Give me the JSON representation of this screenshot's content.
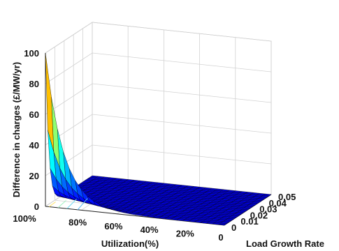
{
  "chart_data": {
    "type": "surface",
    "title": "",
    "xlabel": "Utilization(%)",
    "ylabel": "Load Growth Rate",
    "zlabel": "Difference in charges (£/MW/yr)",
    "x_ticks": [
      "100%",
      "80%",
      "60%",
      "40%",
      "20%",
      "0"
    ],
    "y_ticks": [
      "0",
      "0.01",
      "0.02",
      "0.03",
      "0.04",
      "0.05"
    ],
    "z_ticks": [
      "0",
      "20",
      "40",
      "60",
      "80",
      "100"
    ],
    "xlim": [
      0,
      100
    ],
    "ylim": [
      0,
      0.05
    ],
    "zlim": [
      0,
      100
    ],
    "x_reversed": true,
    "grid": true,
    "colormap": "jet",
    "surface_sample": {
      "utilization": [
        100,
        95,
        90,
        85,
        80,
        70,
        60,
        40,
        20,
        0
      ],
      "load_growth_rate": [
        0,
        0.01,
        0.02,
        0.03,
        0.04,
        0.05
      ],
      "difference_at_zero_growth": [
        100,
        63,
        38,
        22,
        13,
        5,
        2,
        0.5,
        0.1,
        0
      ],
      "difference_at_max_growth": [
        0,
        0,
        0,
        0,
        0,
        0,
        0,
        0,
        0,
        0
      ]
    }
  }
}
